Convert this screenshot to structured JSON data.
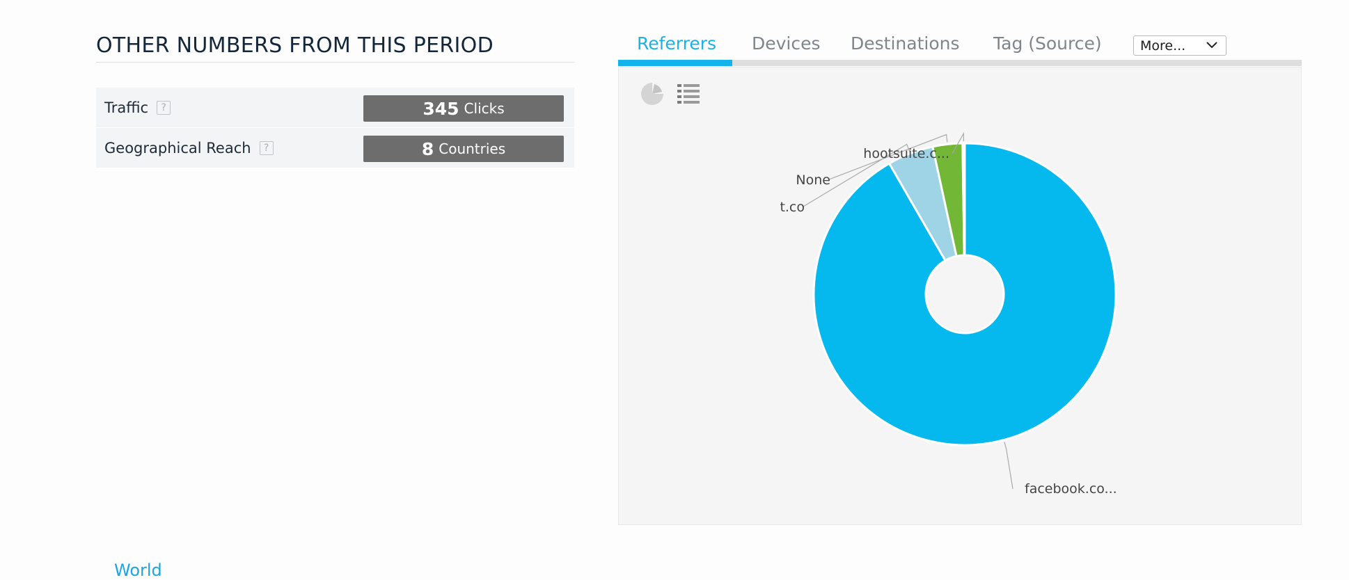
{
  "summary": {
    "title": "OTHER NUMBERS FROM THIS PERIOD",
    "stats": [
      {
        "label": "Traffic",
        "help": "?",
        "number": "345",
        "unit": "Clicks"
      },
      {
        "label": "Geographical Reach",
        "help": "?",
        "number": "8",
        "unit": "Countries"
      }
    ],
    "bottom_link": "World"
  },
  "tabs": {
    "items": [
      {
        "label": "Referrers",
        "active": true
      },
      {
        "label": "Devices",
        "active": false
      },
      {
        "label": "Destinations",
        "active": false
      },
      {
        "label": "Tag (Source)",
        "active": false
      }
    ],
    "more_select": "More..."
  },
  "chart_tools": {
    "pie_icon": "pie-chart-icon",
    "list_icon": "list-icon"
  },
  "chart_data": {
    "type": "pie",
    "donut": true,
    "labels": [
      "facebook.co...",
      "t.co",
      "None",
      "hootsuite.c..."
    ],
    "values": [
      317,
      17,
      11,
      0.8
    ],
    "colors": [
      "#05b9ee",
      "#9fd4e6",
      "#72b736",
      "#d6d6d6"
    ]
  }
}
